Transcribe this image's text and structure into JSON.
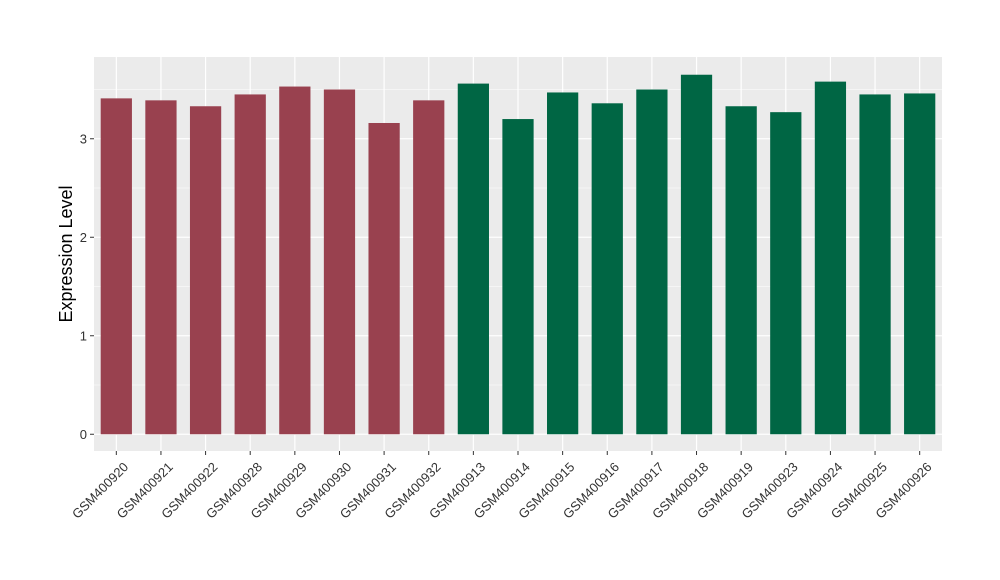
{
  "chart_data": {
    "type": "bar",
    "title": "",
    "xlabel": "",
    "ylabel": "Expression Level",
    "ylim": [
      -0.17,
      3.83
    ],
    "yticks": [
      0,
      1,
      2,
      3
    ],
    "grid": true,
    "legend": "none",
    "categories": [
      "GSM400920",
      "GSM400921",
      "GSM400922",
      "GSM400928",
      "GSM400929",
      "GSM400930",
      "GSM400931",
      "GSM400932",
      "GSM400913",
      "GSM400914",
      "GSM400915",
      "GSM400916",
      "GSM400917",
      "GSM400918",
      "GSM400919",
      "GSM400923",
      "GSM400924",
      "GSM400925",
      "GSM400926"
    ],
    "values": [
      3.41,
      3.39,
      3.33,
      3.45,
      3.53,
      3.5,
      3.16,
      3.39,
      3.56,
      3.2,
      3.47,
      3.36,
      3.5,
      3.65,
      3.33,
      3.27,
      3.58,
      3.45,
      3.46
    ],
    "bar_colors": [
      "#99414f",
      "#99414f",
      "#99414f",
      "#99414f",
      "#99414f",
      "#99414f",
      "#99414f",
      "#99414f",
      "#006644",
      "#006644",
      "#006644",
      "#006644",
      "#006644",
      "#006644",
      "#006644",
      "#006644",
      "#006644",
      "#006644",
      "#006644"
    ],
    "panel_color": "#ebebeb",
    "grid_color": "#ffffff"
  }
}
